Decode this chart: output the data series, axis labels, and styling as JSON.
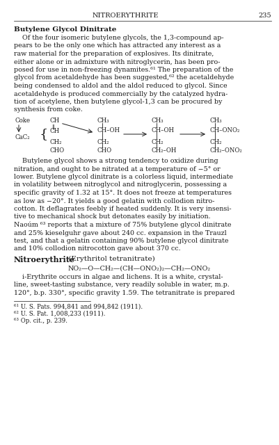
{
  "background_color": "#ffffff",
  "text_color": "#1a1a1a",
  "header_text": "NITROERYTHRITE",
  "page_number": "235",
  "section1_title": "Butylene Glycol Dinitrate",
  "section1_body": [
    "    Of the four isomeric butylene glycols, the 1,3-compound ap-",
    "pears to be the only one which has attracted any interest as a",
    "raw material for the preparation of explosives. Its dinitrate,",
    "either alone or in admixture with nitroglycerin, has been pro-",
    "posed for use in non-freezing dynamites.⁶¹ The preparation of the",
    "glycol from acetaldehyde has been suggested,⁶² the acetaldehyde",
    "being condensed to aldol and the aldol reduced to glycol. Since",
    "acetaldehyde is produced commercially by the catalyzed hydra-",
    "tion of acetylene, then butylene glycol-1,3 can be procured by",
    "synthesis from coke."
  ],
  "section2_body": [
    "    Butylene glycol shows a strong tendency to oxidize during",
    "nitration, and ought to be nitrated at a temperature of −5° or",
    "lower. Butylene glycol dinitrate is a colorless liquid, intermediate",
    "in volatility between nitroglycol and nitroglycerin, possessing a",
    "specific gravity of 1.32 at 15°. It does not freeze at temperatures",
    "as low as −20°. It yields a good gelatin with collodion nitro-",
    "cotton. It deflagrates feebly if heated suddenly. It is very insensi-",
    "tive to mechanical shock but detonates easily by initiation.",
    "Naoúm ⁶³ reports that a mixture of 75% butylene glycol dinitrate",
    "and 25% kieselguhr gave about 240 cc. expansion in the Trauzl",
    "test, and that a gelatin containing 90% butylene glycol dinitrate",
    "and 10% collodion nitrocotton gave about 370 cc."
  ],
  "section3_title": "Nitroerythrite",
  "section3_subtitle": " (Erythritol tetranitrate)",
  "section3_formula": "NO₂—O—CH₂—(CH—ONO₂)₂—CH₂—ONO₂",
  "section3_body": [
    "    i-Erythrite occurs in algae and lichens. It is a white, crystal-",
    "line, sweet-tasting substance, very readily soluble in water, m.p.",
    "120°, b.p. 330°, specific gravity 1.59. The tetranitrate is prepared"
  ],
  "footnotes": [
    "⁶¹ U. S. Pats. 994,841 and 994,842 (1911).",
    "⁶² U. S. Pat. 1,008,233 (1911).",
    "⁶³ Op. cit., p. 239."
  ],
  "font_size_body": 6.8,
  "font_size_header": 7.0,
  "font_size_section_title": 7.5,
  "font_size_footnote": 6.2,
  "font_size_diag": 6.2
}
